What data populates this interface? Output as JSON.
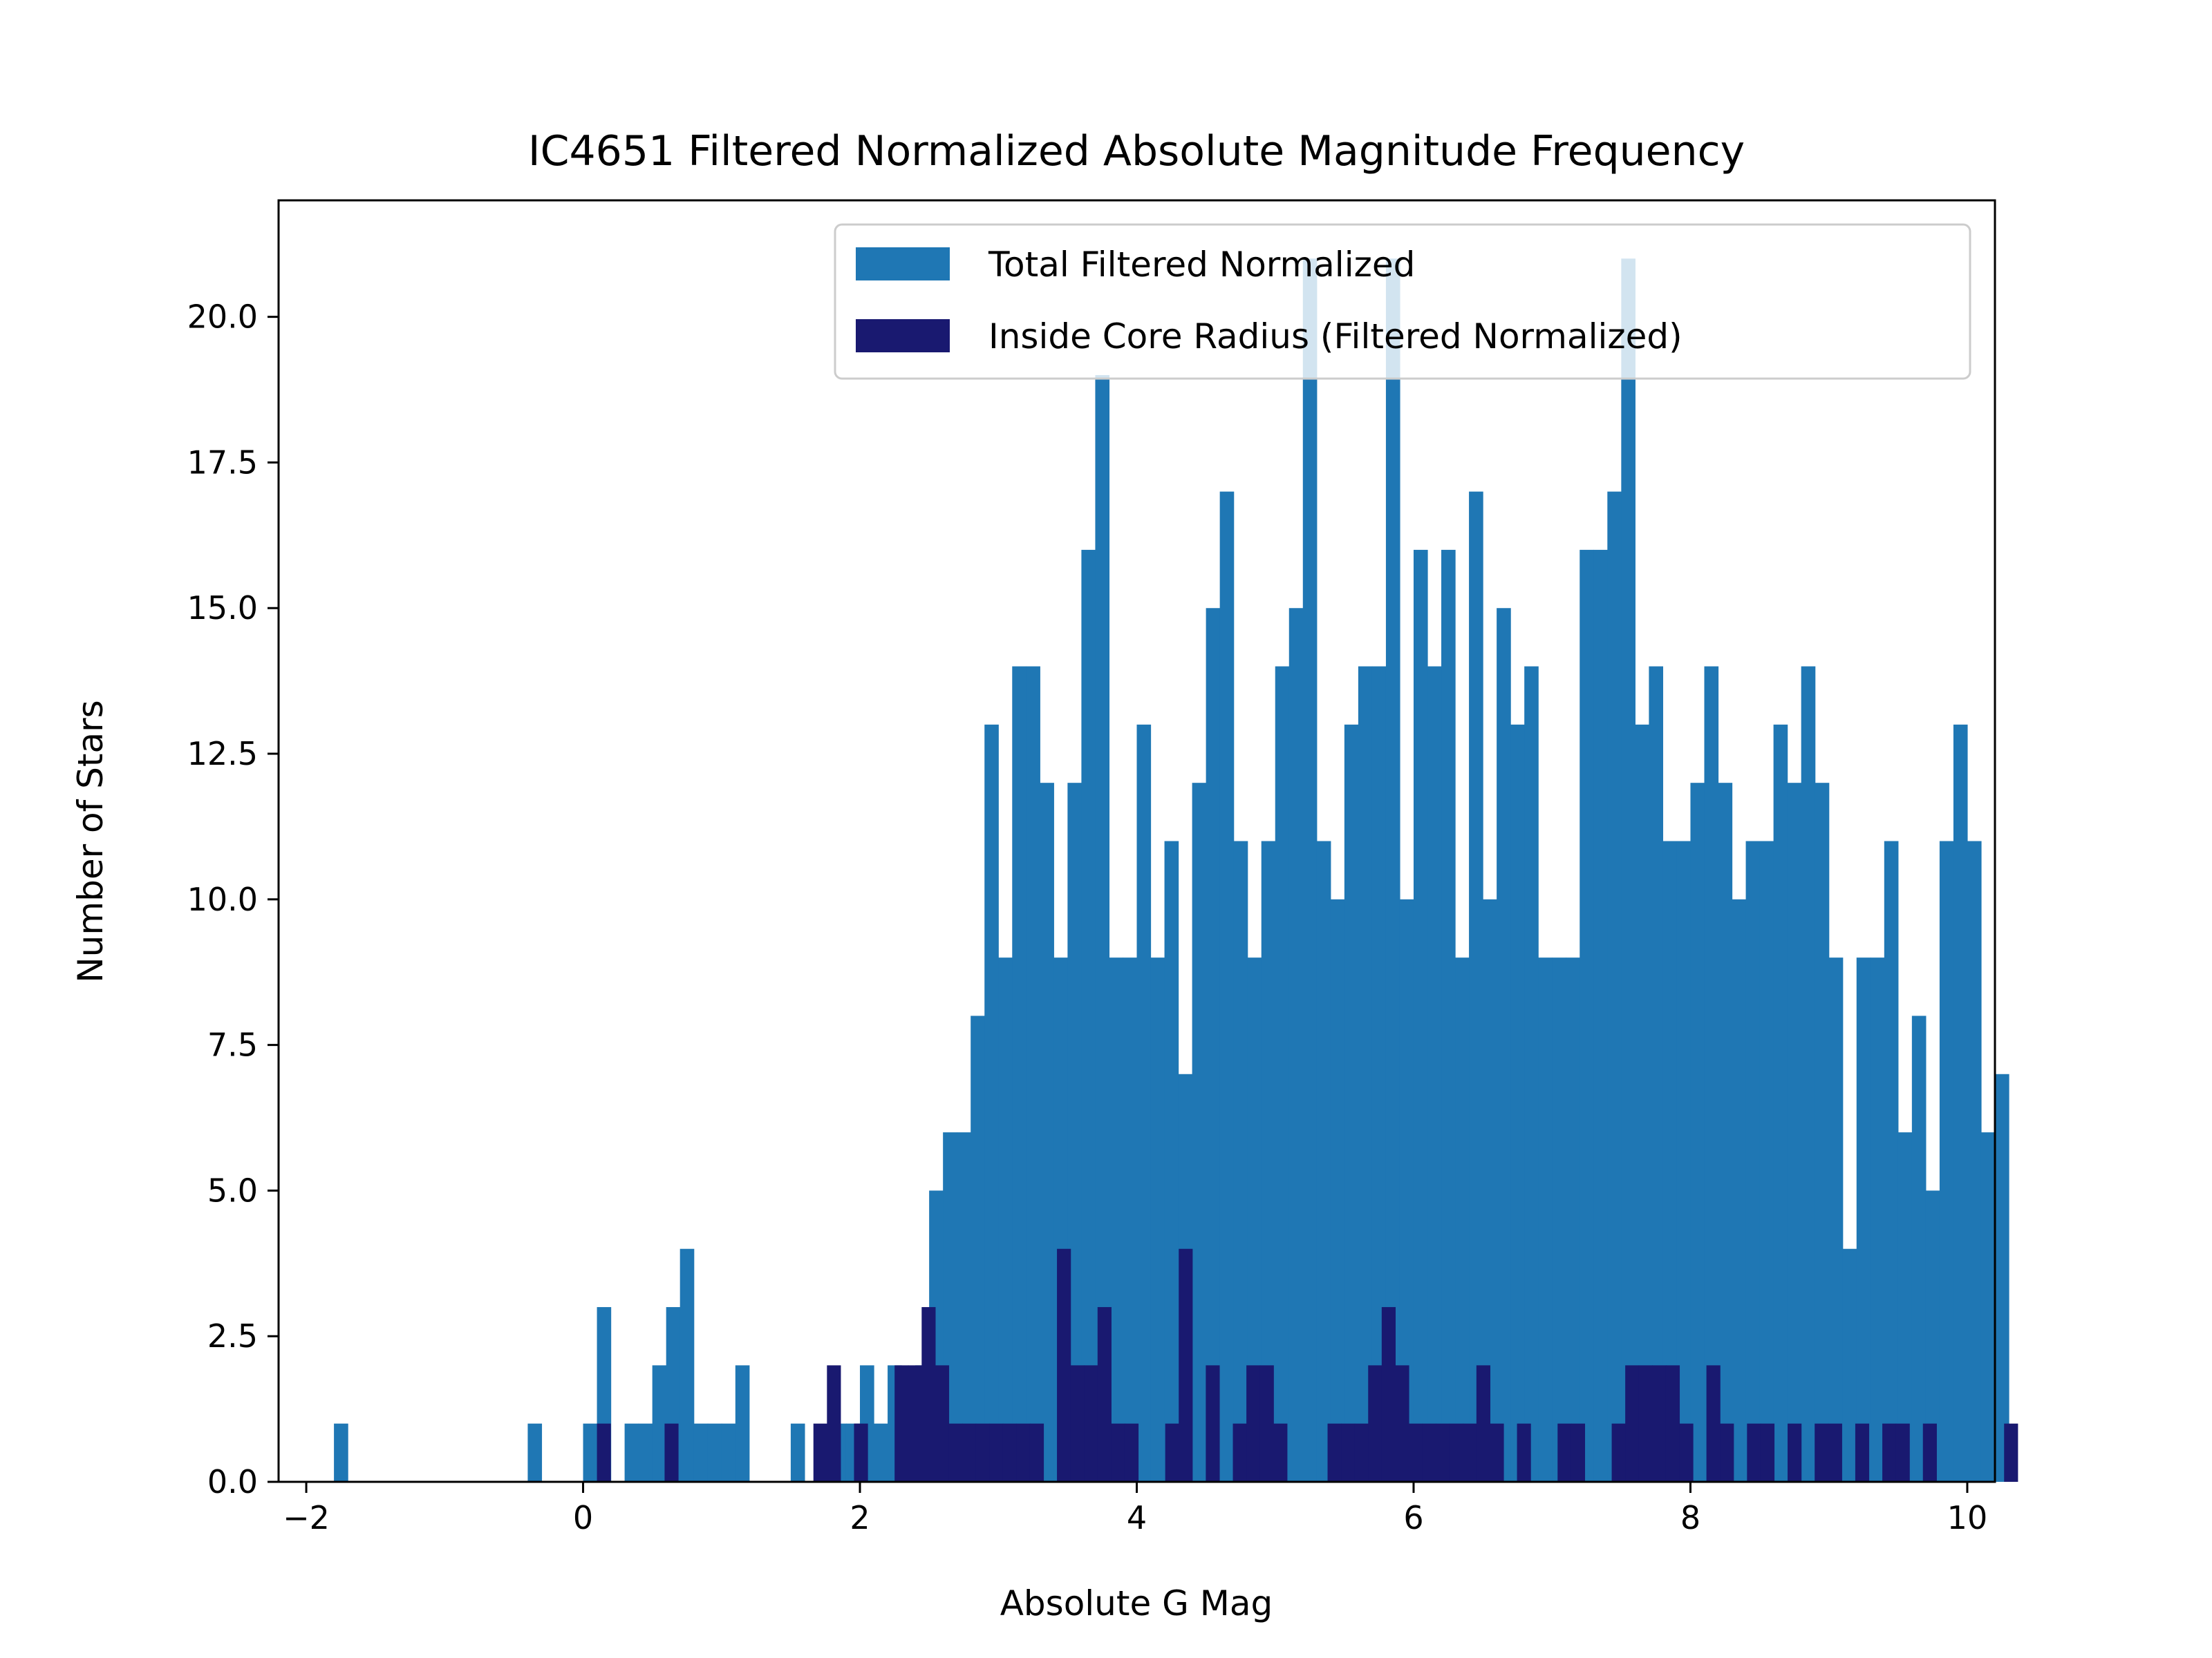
{
  "chart_data": {
    "type": "bar",
    "title": "IC4651 Filtered Normalized Absolute Magnitude Frequency",
    "xlabel": "Absolute G Mag",
    "ylabel": "Number of Stars",
    "xlim": [
      -2.2,
      10.2
    ],
    "ylim": [
      0,
      22
    ],
    "xticks": [
      -2,
      0,
      2,
      4,
      6,
      8,
      10
    ],
    "xtick_labels": [
      "−2",
      "0",
      "2",
      "4",
      "6",
      "8",
      "10"
    ],
    "yticks": [
      0,
      2.5,
      5,
      7.5,
      10,
      12.5,
      15,
      17.5,
      20
    ],
    "ytick_labels": [
      "0.0",
      "2.5",
      "5.0",
      "7.5",
      "10.0",
      "12.5",
      "15.0",
      "17.5",
      "20.0"
    ],
    "grid": false,
    "legend_position": "top-right",
    "series": [
      {
        "name": "Total Filtered Normalized",
        "color": "#1f77b4",
        "bin_start": -2.0,
        "bin_width": 0.1,
        "values": [
          0,
          0,
          1,
          0,
          0,
          0,
          0,
          0,
          0,
          0,
          0,
          0,
          0,
          0,
          0,
          0,
          1,
          0,
          0,
          0,
          1,
          3,
          0,
          1,
          1,
          2,
          3,
          4,
          1,
          1,
          1,
          2,
          0,
          0,
          0,
          1,
          0,
          0,
          1,
          1,
          2,
          1,
          2,
          1,
          2,
          5,
          6,
          6,
          8,
          13,
          9,
          14,
          14,
          12,
          9,
          12,
          16,
          19,
          9,
          9,
          13,
          9,
          11,
          7,
          12,
          15,
          17,
          11,
          9,
          11,
          14,
          15,
          21,
          11,
          10,
          13,
          14,
          14,
          21,
          10,
          16,
          14,
          16,
          9,
          17,
          10,
          15,
          13,
          14,
          9,
          9,
          9,
          16,
          16,
          17,
          21,
          13,
          14,
          11,
          11,
          12,
          14,
          12,
          10,
          11,
          11,
          13,
          12,
          14,
          12,
          9,
          4,
          9,
          9,
          11,
          6,
          8,
          5,
          11,
          13,
          11,
          6,
          7
        ]
      },
      {
        "name": "Inside Core Radius (Filtered Normalized)",
        "color": "#191970",
        "bin_start": 0.1,
        "bin_width": 0.09775,
        "values": [
          1,
          0,
          0,
          0,
          0,
          1,
          0,
          0,
          0,
          0,
          0,
          0,
          0,
          0,
          0,
          0,
          1,
          2,
          0,
          1,
          0,
          0,
          2,
          2,
          3,
          2,
          1,
          1,
          1,
          1,
          1,
          1,
          1,
          0,
          4,
          2,
          2,
          3,
          1,
          1,
          0,
          0,
          1,
          4,
          0,
          2,
          0,
          1,
          2,
          2,
          1,
          0,
          0,
          0,
          1,
          1,
          1,
          2,
          3,
          2,
          1,
          1,
          1,
          1,
          1,
          2,
          1,
          0,
          1,
          0,
          0,
          1,
          1,
          0,
          0,
          1,
          2,
          2,
          2,
          2,
          1,
          0,
          2,
          1,
          0,
          1,
          1,
          0,
          1,
          0,
          1,
          1,
          0,
          1,
          0,
          1,
          1,
          0,
          1,
          0,
          0,
          0,
          0,
          0,
          1,
          0
        ]
      }
    ]
  }
}
